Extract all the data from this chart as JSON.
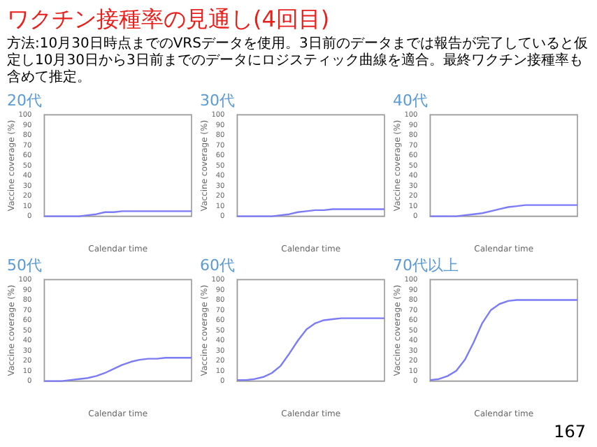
{
  "chart_data": [
    {
      "type": "other",
      "title": "ワクチン接種率の見通し(4回目)",
      "subtitle": "方法:10月30日時点までのVRSデータを使用。3日前のデータまでは報告が完了していると仮定し10月30日から3日前までのデータにロジスティック曲線を適合。最終ワクチン接種率も含めて推定。",
      "annotations": [
        "167"
      ]
    },
    {
      "type": "line",
      "title": "20代",
      "xlabel": "Calendar time",
      "ylabel": "Vaccine coverage (%)",
      "categories": [
        null,
        null,
        null,
        null,
        null,
        null,
        null,
        null,
        null,
        null,
        null,
        null,
        null,
        null,
        null,
        null,
        null,
        null
      ],
      "values": [
        0,
        0,
        0,
        0,
        0,
        1,
        2,
        4,
        4,
        5,
        5,
        5,
        5,
        5,
        5,
        5,
        5,
        5
      ],
      "color": "#7b7bf5",
      "ylim": [
        0,
        100
      ],
      "yticks": [
        0,
        10,
        20,
        30,
        40,
        50,
        60,
        70,
        80,
        90,
        100
      ]
    },
    {
      "type": "line",
      "title": "30代",
      "xlabel": "Calendar time",
      "ylabel": "Vaccine coverage (%)",
      "categories": [
        null,
        null,
        null,
        null,
        null,
        null,
        null,
        null,
        null,
        null,
        null,
        null,
        null,
        null,
        null,
        null,
        null,
        null
      ],
      "values": [
        0,
        0,
        0,
        0,
        0,
        1,
        2,
        4,
        5,
        6,
        6,
        7,
        7,
        7,
        7,
        7,
        7,
        7
      ],
      "color": "#7b7bf5",
      "ylim": [
        0,
        100
      ],
      "yticks": [
        0,
        10,
        20,
        30,
        40,
        50,
        60,
        70,
        80,
        90,
        100
      ]
    },
    {
      "type": "line",
      "title": "40代",
      "xlabel": "Calendar time",
      "ylabel": "Vaccine coverage (%)",
      "categories": [
        null,
        null,
        null,
        null,
        null,
        null,
        null,
        null,
        null,
        null,
        null,
        null,
        null,
        null,
        null,
        null,
        null,
        null
      ],
      "values": [
        0,
        0,
        0,
        0,
        1,
        2,
        3,
        5,
        7,
        9,
        10,
        11,
        11,
        11,
        11,
        11,
        11,
        11
      ],
      "color": "#7b7bf5",
      "ylim": [
        0,
        100
      ],
      "yticks": [
        0,
        10,
        20,
        30,
        40,
        50,
        60,
        70,
        80,
        90,
        100
      ]
    },
    {
      "type": "line",
      "title": "50代",
      "xlabel": "Calendar time",
      "ylabel": "Vaccine coverage (%)",
      "categories": [
        null,
        null,
        null,
        null,
        null,
        null,
        null,
        null,
        null,
        null,
        null,
        null,
        null,
        null,
        null,
        null,
        null,
        null
      ],
      "values": [
        0,
        0,
        0,
        1,
        2,
        3,
        5,
        8,
        12,
        16,
        19,
        21,
        22,
        22,
        23,
        23,
        23,
        23
      ],
      "color": "#7b7bf5",
      "ylim": [
        0,
        100
      ],
      "yticks": [
        0,
        10,
        20,
        30,
        40,
        50,
        60,
        70,
        80,
        90,
        100
      ]
    },
    {
      "type": "line",
      "title": "60代",
      "xlabel": "Calendar time",
      "ylabel": "Vaccine coverage (%)",
      "categories": [
        null,
        null,
        null,
        null,
        null,
        null,
        null,
        null,
        null,
        null,
        null,
        null,
        null,
        null,
        null,
        null,
        null,
        null
      ],
      "values": [
        1,
        1,
        2,
        4,
        8,
        15,
        27,
        40,
        51,
        57,
        60,
        61,
        62,
        62,
        62,
        62,
        62,
        62
      ],
      "color": "#7b7bf5",
      "ylim": [
        0,
        100
      ],
      "yticks": [
        0,
        10,
        20,
        30,
        40,
        50,
        60,
        70,
        80,
        90,
        100
      ]
    },
    {
      "type": "line",
      "title": "70代以上",
      "xlabel": "Calendar time",
      "ylabel": "Vaccine coverage (%)",
      "categories": [
        null,
        null,
        null,
        null,
        null,
        null,
        null,
        null,
        null,
        null,
        null,
        null,
        null,
        null,
        null,
        null,
        null,
        null
      ],
      "values": [
        1,
        2,
        5,
        10,
        21,
        38,
        57,
        70,
        76,
        79,
        80,
        80,
        80,
        80,
        80,
        80,
        80,
        80
      ],
      "color": "#7b7bf5",
      "ylim": [
        0,
        100
      ],
      "yticks": [
        0,
        10,
        20,
        30,
        40,
        50,
        60,
        70,
        80,
        90,
        100
      ]
    }
  ]
}
